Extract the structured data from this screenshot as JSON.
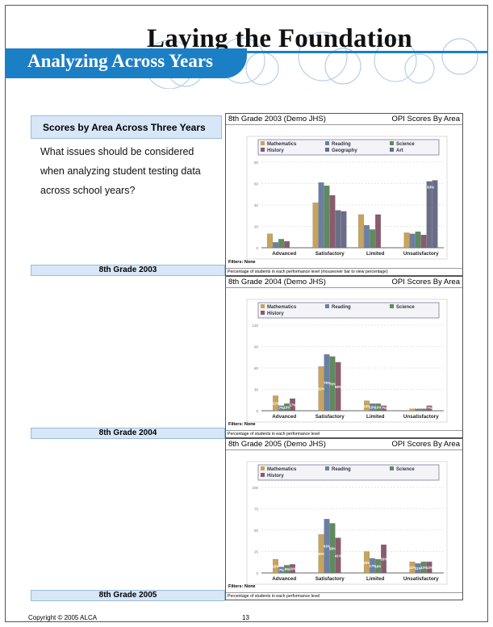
{
  "header": {
    "title": "Laying the Foundation",
    "subtitle": "Analyzing Across Years"
  },
  "left": {
    "box_title": "Scores by Area Across Three Years",
    "question": "What issues should be considered when analyzing student testing data across school years?"
  },
  "footer": {
    "copyright": "Copyright © 2005 ALCA",
    "page": "13"
  },
  "colors": {
    "Mathematics": "#c8a45a",
    "Reading": "#6b7fa3",
    "Science": "#5f8a5f",
    "History": "#8a5b6e",
    "Geography": "#6a6f86",
    "Art": "#6b6b8c",
    "banner": "#1b7fc6",
    "label_bg": "#d7e7f8"
  },
  "panels": [
    {
      "label": "8th Grade 2003",
      "head_left": "8th Grade 2003 (Demo JHS)",
      "head_right": "OPI Scores By Area",
      "filters": "Filters: None",
      "caption": "Percentage of students in each performance level (mouseover bar to view percentage)"
    },
    {
      "label": "8th Grade 2004",
      "head_left": "8th Grade 2004 (Demo JHS)",
      "head_right": "OPI Scores By Area",
      "filters": "Filters: None",
      "caption": "Percentage of students in each performance level"
    },
    {
      "label": "8th Grade 2005",
      "head_left": "8th Grade 2005 (Demo JHS)",
      "head_right": "OPI Scores By Area",
      "filters": "Filters: None",
      "caption": "Percentage of students in each performance level"
    }
  ],
  "chart_data": [
    {
      "type": "bar",
      "categories": [
        "Advanced",
        "Satisfactory",
        "Limited",
        "Unsatisfactory"
      ],
      "ylim": [
        0,
        80
      ],
      "yticks": [
        0,
        20,
        40,
        60,
        80
      ],
      "series": [
        {
          "name": "Mathematics",
          "values": [
            13,
            42,
            31,
            14
          ]
        },
        {
          "name": "Reading",
          "values": [
            5,
            61,
            21,
            13
          ]
        },
        {
          "name": "Science",
          "values": [
            8,
            58,
            17,
            15
          ]
        },
        {
          "name": "History",
          "values": [
            6,
            49,
            31,
            12
          ]
        },
        {
          "name": "Geography",
          "values": [
            0,
            35,
            0,
            62
          ]
        },
        {
          "name": "Art",
          "values": [
            0,
            34,
            0,
            63
          ]
        }
      ],
      "data_labels": [
        {
          "series": "Art",
          "category": "Unsatisfactory",
          "text": "63%"
        }
      ]
    },
    {
      "type": "bar",
      "categories": [
        "Advanced",
        "Satisfactory",
        "Limited",
        "Unsatisfactory"
      ],
      "ylim": [
        0,
        120
      ],
      "yticks": [
        0,
        30,
        60,
        90,
        120
      ],
      "series": [
        {
          "name": "Mathematics",
          "values": [
            21,
            62,
            14,
            3
          ],
          "labels": [
            "21%",
            "62%",
            "14%",
            "3%"
          ]
        },
        {
          "name": "Reading",
          "values": [
            7,
            79,
            10,
            3
          ],
          "labels": [
            "7%",
            "79%",
            "10%",
            "3%"
          ]
        },
        {
          "name": "Science",
          "values": [
            10,
            76,
            10,
            3
          ],
          "labels": [
            "10%",
            "76%",
            "10%",
            "3%"
          ]
        },
        {
          "name": "History",
          "values": [
            17,
            68,
            7,
            7
          ],
          "labels": [
            "17%",
            "68%",
            "7%",
            "7%"
          ]
        }
      ]
    },
    {
      "type": "bar",
      "categories": [
        "Advanced",
        "Satisfactory",
        "Limited",
        "Unsatisfactory"
      ],
      "ylim": [
        0,
        100
      ],
      "yticks": [
        0,
        25,
        50,
        75,
        100
      ],
      "series": [
        {
          "name": "Mathematics",
          "values": [
            16,
            45,
            25,
            13
          ],
          "labels": [
            "16%",
            "45%",
            "25%",
            "13%"
          ]
        },
        {
          "name": "Reading",
          "values": [
            7,
            63,
            17,
            11
          ],
          "labels": [
            "7%",
            "63%",
            "17%",
            "11%"
          ]
        },
        {
          "name": "Science",
          "values": [
            9,
            58,
            16,
            13
          ],
          "labels": [
            "9%",
            "58%",
            "16%",
            "13%"
          ]
        },
        {
          "name": "History",
          "values": [
            10,
            41,
            33,
            13
          ],
          "labels": [
            "10%",
            "41%",
            "33%",
            "13%"
          ]
        }
      ]
    }
  ]
}
